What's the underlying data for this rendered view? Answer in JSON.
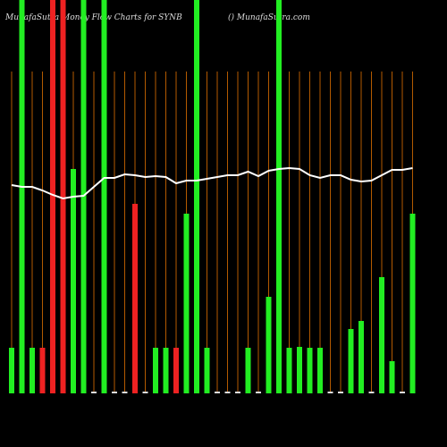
{
  "chart_data": {
    "type": "bar",
    "title": "MunafaSutra  Money Flow Charts for SYNB",
    "subtitle": "() MunafaSutra.com",
    "categories": [
      null,
      null,
      null,
      null,
      null,
      null,
      null,
      null,
      null,
      null,
      null,
      null,
      null,
      null,
      null,
      null,
      null,
      null,
      null,
      null,
      null,
      null,
      null,
      null,
      null,
      null,
      null,
      null,
      null,
      null,
      null,
      null,
      null,
      null,
      null,
      null,
      null,
      null,
      null,
      null
    ],
    "values": [
      51,
      440,
      51,
      51,
      440,
      440,
      251,
      440,
      2,
      440,
      2,
      2,
      212,
      2,
      51,
      51,
      51,
      201,
      440,
      51,
      2,
      2,
      2,
      51,
      2,
      108,
      440,
      51,
      52,
      51,
      51,
      2,
      2,
      72,
      81,
      2,
      130,
      36,
      2,
      201
    ],
    "colors": [
      "#22ee22",
      "#22ee22",
      "#22ee22",
      "#ee2222",
      "#ee2222",
      "#ee2222",
      "#22ee22",
      "#22ee22",
      "#dddddd",
      "#22ee22",
      "#dddddd",
      "#dddddd",
      "#ee2222",
      "#dddddd",
      "#22ee22",
      "#22ee22",
      "#ee2222",
      "#22ee22",
      "#22ee22",
      "#22ee22",
      "#dddddd",
      "#dddddd",
      "#dddddd",
      "#22ee22",
      "#dddddd",
      "#22ee22",
      "#22ee22",
      "#22ee22",
      "#22ee22",
      "#22ee22",
      "#22ee22",
      "#dddddd",
      "#dddddd",
      "#22ee22",
      "#22ee22",
      "#dddddd",
      "#22ee22",
      "#22ee22",
      "#dddddd",
      "#22ee22"
    ],
    "line": {
      "color": "#ffffff",
      "values": [
        233,
        231,
        231,
        227,
        222,
        218,
        220,
        221,
        231,
        241,
        241,
        245,
        244,
        242,
        243,
        242,
        235,
        238,
        238,
        240,
        242,
        244,
        244,
        248,
        243,
        249,
        251,
        252,
        251,
        244,
        241,
        244,
        244,
        239,
        237,
        238,
        244,
        250,
        250,
        252
      ]
    },
    "guide_color": "#b35a00",
    "ylim": [
      0,
      440
    ]
  }
}
